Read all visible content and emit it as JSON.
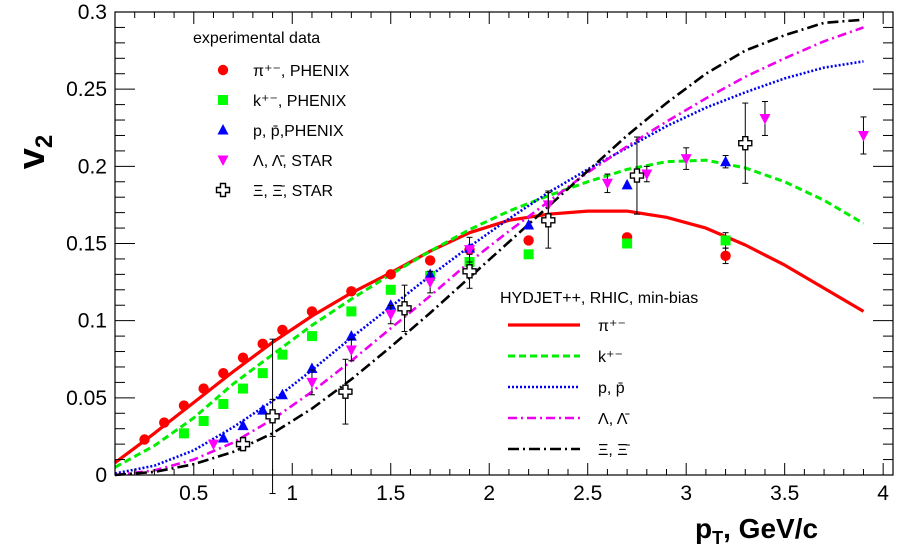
{
  "chart_data": {
    "type": "scatter",
    "xlabel": "p",
    "xlabel_sub": "T",
    "xlabel_suffix": ", GeV/c",
    "ylabel": "v",
    "ylabel_sub": "2",
    "xlim": [
      0.1,
      4.05
    ],
    "ylim": [
      0,
      0.3
    ],
    "x_ticks": [
      0.5,
      1,
      1.5,
      2,
      2.5,
      3,
      3.5,
      4
    ],
    "x_tick_labels": [
      "0.5",
      "1",
      "1.5",
      "2",
      "2.5",
      "3",
      "3.5",
      "4"
    ],
    "y_ticks": [
      0,
      0.05,
      0.1,
      0.15,
      0.2,
      0.25,
      0.3
    ],
    "y_tick_labels": [
      "0",
      "0.05",
      "0.1",
      "0.15",
      "0.2",
      "0.25",
      "0.3"
    ],
    "grid": false,
    "data_legend": {
      "title": "experimental data",
      "position": "top-left",
      "entries": [
        {
          "series": "pi",
          "label": "π⁺⁻, PHENIX"
        },
        {
          "series": "k",
          "label": "k⁺⁻, PHENIX"
        },
        {
          "series": "p",
          "label": "p, p̄,PHENIX"
        },
        {
          "series": "lambda",
          "label": "Λ, Λ̄, STAR"
        },
        {
          "series": "xi",
          "label": "Ξ,  Ξ̄, STAR"
        }
      ]
    },
    "model_legend": {
      "title": "HYDJET++, RHIC, min-bias",
      "position": "bottom-right",
      "entries": [
        {
          "curve": "pi",
          "label": "π⁺⁻"
        },
        {
          "curve": "k",
          "label": "k⁺⁻"
        },
        {
          "curve": "p",
          "label": "p, p̄"
        },
        {
          "curve": "lambda",
          "label": "Λ, Λ̄"
        },
        {
          "curve": "xi",
          "label": "Ξ, Ξ̄"
        }
      ]
    },
    "series": [
      {
        "id": "pi",
        "marker": "circle",
        "color": "#ff0000",
        "x": [
          0.25,
          0.35,
          0.45,
          0.55,
          0.65,
          0.75,
          0.85,
          0.95,
          1.1,
          1.3,
          1.5,
          1.7,
          1.9,
          2.2,
          2.7,
          3.2
        ],
        "y": [
          0.023,
          0.034,
          0.045,
          0.056,
          0.066,
          0.076,
          0.085,
          0.094,
          0.106,
          0.119,
          0.13,
          0.139,
          0.146,
          0.152,
          0.154,
          0.142
        ],
        "err": [
          0,
          0,
          0,
          0,
          0,
          0,
          0,
          0,
          0,
          0,
          0,
          0,
          0,
          0,
          0,
          0.005
        ]
      },
      {
        "id": "k",
        "marker": "square",
        "color": "#00ff00",
        "x": [
          0.45,
          0.55,
          0.65,
          0.75,
          0.85,
          0.95,
          1.1,
          1.3,
          1.5,
          1.7,
          1.9,
          2.2,
          2.7,
          3.2
        ],
        "y": [
          0.027,
          0.035,
          0.046,
          0.056,
          0.066,
          0.078,
          0.09,
          0.106,
          0.12,
          0.129,
          0.138,
          0.143,
          0.15,
          0.152
        ],
        "err": [
          0,
          0,
          0,
          0,
          0,
          0,
          0,
          0,
          0,
          0,
          0,
          0,
          0,
          0.005
        ]
      },
      {
        "id": "p",
        "marker": "triangle-up",
        "color": "#0000ff",
        "x": [
          0.65,
          0.75,
          0.85,
          0.95,
          1.1,
          1.3,
          1.5,
          1.7,
          1.9,
          2.2,
          2.7,
          3.2
        ],
        "y": [
          0.024,
          0.032,
          0.042,
          0.052,
          0.069,
          0.09,
          0.11,
          0.13,
          0.147,
          0.162,
          0.188,
          0.203
        ],
        "err": [
          0,
          0,
          0,
          0,
          0,
          0,
          0,
          0,
          0,
          0,
          0,
          0.004
        ]
      },
      {
        "id": "lambda",
        "marker": "triangle-down",
        "color": "#ff00ff",
        "x": [
          0.6,
          0.9,
          1.1,
          1.3,
          1.5,
          1.7,
          1.9,
          2.3,
          2.6,
          2.8,
          3.0,
          3.4,
          3.9
        ],
        "y": [
          0.02,
          0.037,
          0.06,
          0.081,
          0.104,
          0.125,
          0.146,
          0.175,
          0.189,
          0.195,
          0.205,
          0.231,
          0.22
        ],
        "err": [
          0,
          0.012,
          0.008,
          0.007,
          0.006,
          0.007,
          0.008,
          0.009,
          0.006,
          0.005,
          0.007,
          0.011,
          0.012
        ]
      },
      {
        "id": "xi",
        "marker": "open-cross",
        "color": "#000000",
        "x": [
          0.75,
          0.9,
          1.27,
          1.57,
          1.9,
          2.3,
          2.75,
          3.3
        ],
        "y": [
          0.02,
          0.038,
          0.054,
          0.108,
          0.132,
          0.165,
          0.194,
          0.215
        ],
        "err": [
          0.003,
          0.05,
          0.021,
          0.015,
          0.011,
          0.018,
          0.025,
          0.026
        ]
      }
    ],
    "curves": [
      {
        "id": "pi",
        "color": "#ff0000",
        "dash": "",
        "width": 3.2,
        "x": [
          0.1,
          0.3,
          0.5,
          0.7,
          0.9,
          1.1,
          1.3,
          1.5,
          1.7,
          1.9,
          2.1,
          2.3,
          2.5,
          2.7,
          2.9,
          3.1,
          3.3,
          3.5,
          3.7,
          3.9
        ],
        "y": [
          0.008,
          0.027,
          0.047,
          0.067,
          0.086,
          0.103,
          0.118,
          0.131,
          0.145,
          0.157,
          0.165,
          0.169,
          0.171,
          0.171,
          0.167,
          0.16,
          0.149,
          0.136,
          0.121,
          0.106
        ]
      },
      {
        "id": "k",
        "color": "#00ee00",
        "dash": "7,4",
        "width": 3,
        "x": [
          0.1,
          0.3,
          0.5,
          0.7,
          0.9,
          1.1,
          1.3,
          1.5,
          1.7,
          1.9,
          2.1,
          2.3,
          2.5,
          2.7,
          2.9,
          3.1,
          3.3,
          3.5,
          3.7,
          3.9
        ],
        "y": [
          0.005,
          0.019,
          0.037,
          0.059,
          0.078,
          0.097,
          0.114,
          0.13,
          0.145,
          0.159,
          0.171,
          0.181,
          0.19,
          0.198,
          0.203,
          0.204,
          0.199,
          0.19,
          0.178,
          0.163
        ]
      },
      {
        "id": "p",
        "color": "#0000ee",
        "dash": "2,2",
        "width": 2.6,
        "x": [
          0.1,
          0.3,
          0.5,
          0.7,
          0.9,
          1.1,
          1.3,
          1.5,
          1.7,
          1.9,
          2.1,
          2.3,
          2.5,
          2.7,
          2.9,
          3.1,
          3.3,
          3.5,
          3.7,
          3.9
        ],
        "y": [
          0.001,
          0.006,
          0.016,
          0.031,
          0.048,
          0.068,
          0.089,
          0.109,
          0.129,
          0.148,
          0.166,
          0.183,
          0.198,
          0.212,
          0.226,
          0.238,
          0.248,
          0.257,
          0.264,
          0.268
        ]
      },
      {
        "id": "lambda",
        "color": "#ee00ee",
        "dash": "9,4,2,4",
        "width": 2.6,
        "x": [
          0.1,
          0.3,
          0.5,
          0.7,
          0.9,
          1.1,
          1.3,
          1.5,
          1.7,
          1.9,
          2.1,
          2.3,
          2.5,
          2.7,
          2.9,
          3.1,
          3.3,
          3.5,
          3.7,
          3.9
        ],
        "y": [
          0.0,
          0.003,
          0.01,
          0.021,
          0.036,
          0.054,
          0.074,
          0.095,
          0.116,
          0.138,
          0.158,
          0.177,
          0.196,
          0.213,
          0.229,
          0.244,
          0.258,
          0.27,
          0.281,
          0.29
        ]
      },
      {
        "id": "xi",
        "color": "#000000",
        "dash": "11,4,2,4",
        "width": 2.6,
        "x": [
          0.1,
          0.3,
          0.5,
          0.7,
          0.9,
          1.1,
          1.3,
          1.5,
          1.7,
          1.9,
          2.1,
          2.3,
          2.5,
          2.7,
          2.9,
          3.1,
          3.3,
          3.5,
          3.7,
          3.9
        ],
        "y": [
          0.0,
          0.002,
          0.007,
          0.015,
          0.027,
          0.043,
          0.062,
          0.083,
          0.105,
          0.128,
          0.151,
          0.174,
          0.197,
          0.22,
          0.241,
          0.26,
          0.275,
          0.285,
          0.293,
          0.295
        ]
      }
    ]
  }
}
